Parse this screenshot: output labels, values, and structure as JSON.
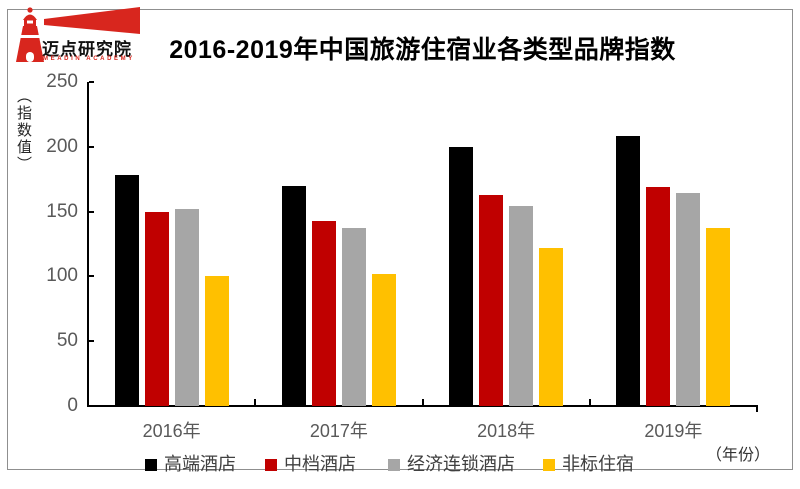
{
  "logo": {
    "cn": "迈点研究院",
    "en": "MEADIN ACADEMY",
    "icon": "lighthouse-with-flag",
    "brand_color": "#d8261e"
  },
  "chart_data": {
    "type": "bar",
    "title": "2016-2019年中国旅游住宿业各类型品牌指数",
    "ylabel": "（指数值）",
    "xlabel": "（年份）",
    "categories": [
      "2016年",
      "2017年",
      "2018年",
      "2019年"
    ],
    "series": [
      {
        "name": "高端酒店",
        "color": "#000000",
        "values": [
          178,
          170,
          200,
          208
        ]
      },
      {
        "name": "中档酒店",
        "color": "#c00000",
        "values": [
          150,
          143,
          163,
          169
        ]
      },
      {
        "name": "经济连锁酒店",
        "color": "#a6a6a6",
        "values": [
          152,
          137,
          154,
          164
        ]
      },
      {
        "name": "非标住宿",
        "color": "#ffc000",
        "values": [
          100,
          102,
          122,
          137
        ]
      }
    ],
    "ylim": [
      0,
      250
    ],
    "ytick_step": 50,
    "yticks": [
      0,
      50,
      100,
      150,
      200,
      250
    ],
    "grid": false,
    "legend_position": "bottom",
    "axis_text_color": "#595959"
  }
}
